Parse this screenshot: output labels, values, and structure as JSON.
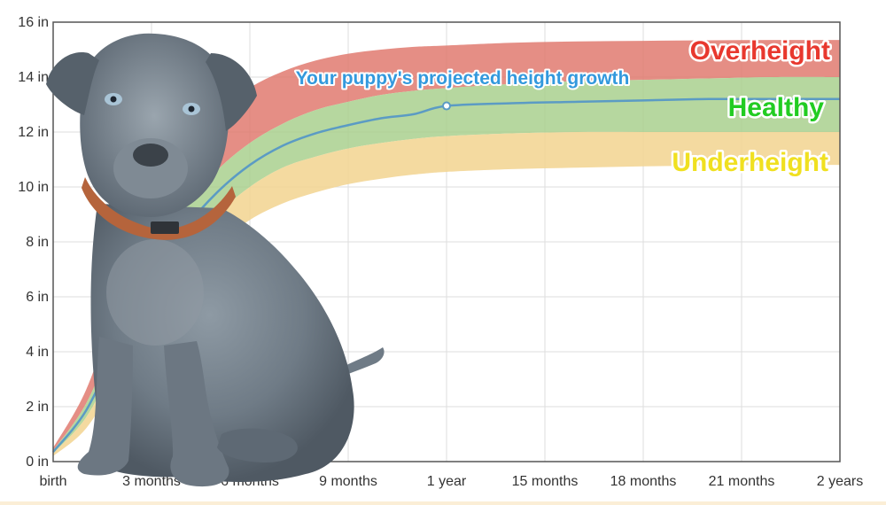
{
  "chart_data": {
    "type": "area",
    "title": "",
    "xlabel": "",
    "ylabel": "",
    "x_ticks": [
      "birth",
      "3 months",
      "6 months",
      "9 months",
      "1 year",
      "15 months",
      "18 months",
      "21 months",
      "2 years"
    ],
    "x_tick_months": [
      0,
      3,
      6,
      9,
      12,
      15,
      18,
      21,
      24
    ],
    "xlim": [
      0,
      24
    ],
    "y_ticks": [
      "0 in",
      "2 in",
      "4 in",
      "6 in",
      "8 in",
      "10 in",
      "12 in",
      "14 in",
      "16 in"
    ],
    "y_tick_values": [
      0,
      2,
      4,
      6,
      8,
      10,
      12,
      14,
      16
    ],
    "ylim": [
      0,
      16
    ],
    "grid": true,
    "growth_months": [
      0,
      1,
      2,
      3,
      4,
      5,
      6,
      7,
      8,
      9,
      10,
      11,
      12,
      14,
      16,
      18,
      20,
      22,
      24
    ],
    "bands": [
      {
        "label": "Overheight",
        "color": "#e07a70",
        "label_color": "#e8382e",
        "lower": [
          0.4,
          2.1,
          4.8,
          7.3,
          9.2,
          10.6,
          11.6,
          12.3,
          12.8,
          13.1,
          13.35,
          13.5,
          13.6,
          13.75,
          13.85,
          13.9,
          13.95,
          14.0,
          14.0
        ],
        "upper": [
          0.5,
          2.6,
          5.9,
          8.8,
          11.0,
          12.6,
          13.6,
          14.2,
          14.6,
          14.85,
          15.0,
          15.1,
          15.15,
          15.25,
          15.3,
          15.32,
          15.34,
          15.35,
          15.35
        ]
      },
      {
        "label": "Healthy",
        "color": "#a9d08e",
        "label_color": "#22cc22",
        "lower": [
          0.3,
          1.6,
          3.8,
          5.9,
          7.7,
          9.0,
          10.0,
          10.7,
          11.1,
          11.4,
          11.6,
          11.75,
          11.85,
          11.95,
          12.0,
          12.0,
          12.0,
          12.0,
          12.0
        ],
        "upper": [
          0.4,
          2.1,
          4.8,
          7.3,
          9.2,
          10.6,
          11.6,
          12.3,
          12.8,
          13.1,
          13.35,
          13.5,
          13.6,
          13.75,
          13.85,
          13.9,
          13.95,
          14.0,
          14.0
        ]
      },
      {
        "label": "Underheight",
        "color": "#f2d48f",
        "label_color": "#f0e020",
        "lower": [
          0.2,
          1.2,
          3.1,
          5.0,
          6.6,
          7.9,
          8.8,
          9.4,
          9.8,
          10.1,
          10.3,
          10.45,
          10.55,
          10.65,
          10.7,
          10.75,
          10.78,
          10.8,
          10.8
        ],
        "upper": [
          0.3,
          1.6,
          3.8,
          5.9,
          7.7,
          9.0,
          10.0,
          10.7,
          11.1,
          11.4,
          11.6,
          11.75,
          11.85,
          11.95,
          12.0,
          12.0,
          12.0,
          12.0,
          12.0
        ]
      }
    ],
    "series": [
      {
        "name": "Your puppy's projected height growth",
        "color": "#5b9bc4",
        "values": [
          0.35,
          1.85,
          4.3,
          6.6,
          8.45,
          9.8,
          10.8,
          11.5,
          11.95,
          12.25,
          12.5,
          12.65,
          12.95,
          13.05,
          13.1,
          13.15,
          13.2,
          13.2,
          13.2
        ]
      }
    ],
    "marker": {
      "x": 12,
      "y": 12.95
    },
    "labels": {
      "projection": "Your puppy's projected height growth",
      "overheight": "Overheight",
      "healthy": "Healthy",
      "underheight": "Underheight"
    }
  },
  "image": {
    "subject": "puppy-photo",
    "description": ""
  }
}
